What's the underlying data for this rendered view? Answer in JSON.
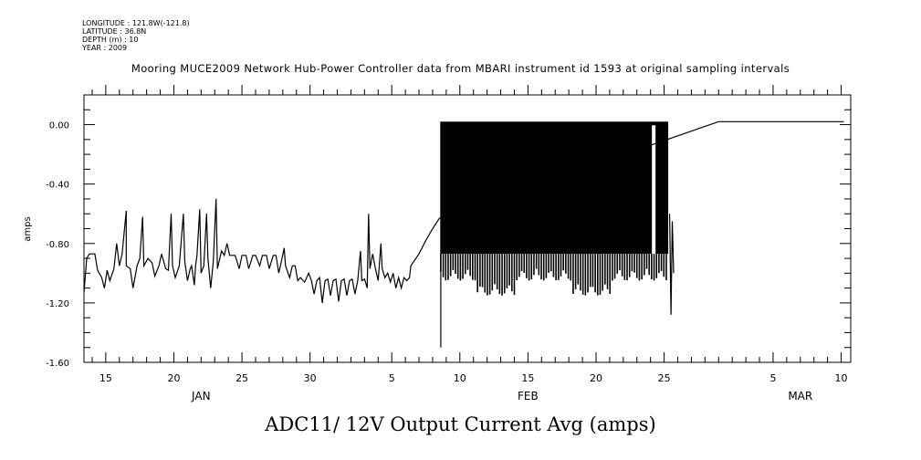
{
  "meta": {
    "longitude": "LONGITUDE : 121.8W(-121.8)",
    "latitude": "LATITUDE : 36.8N",
    "depth": "DEPTH (m) : 10",
    "year": "YEAR : 2009"
  },
  "chart_data": {
    "type": "line",
    "title": "Mooring MUCE2009 Network Hub-Power Controller data from MBARI instrument id 1593 at original sampling intervals",
    "xlabel": "ADC11/ 12V Output Current Avg (amps)",
    "ylabel": "amps",
    "xlim_day": [
      13.4,
      69.7
    ],
    "ylim": [
      -1.6,
      0.2
    ],
    "y_ticks": [
      {
        "v": 0.0,
        "label": "0.00"
      },
      {
        "v": -0.4,
        "label": "-0.40"
      },
      {
        "v": -0.8,
        "label": "-0.80"
      },
      {
        "v": -1.2,
        "label": "-1.20"
      },
      {
        "v": -1.6,
        "label": "-1.60"
      }
    ],
    "x_tick_labels": [
      {
        "day": 15,
        "label": "15"
      },
      {
        "day": 20,
        "label": "20"
      },
      {
        "day": 25,
        "label": "25"
      },
      {
        "day": 30,
        "label": "30"
      },
      {
        "day": 36,
        "label": "5"
      },
      {
        "day": 41,
        "label": "10"
      },
      {
        "day": 46,
        "label": "15"
      },
      {
        "day": 51,
        "label": "20"
      },
      {
        "day": 56,
        "label": "25"
      },
      {
        "day": 64,
        "label": "5"
      },
      {
        "day": 69,
        "label": "10"
      }
    ],
    "months": [
      {
        "day": 22,
        "label": "JAN"
      },
      {
        "day": 46,
        "label": "FEB"
      },
      {
        "day": 66,
        "label": "MAR"
      }
    ],
    "series": [
      {
        "name": "ADC11 12V Output Current Avg",
        "units": "amps",
        "points": [
          [
            13.4,
            -1.13
          ],
          [
            13.6,
            -0.9
          ],
          [
            13.8,
            -0.87
          ],
          [
            14.2,
            -0.87
          ],
          [
            14.4,
            -0.98
          ],
          [
            14.7,
            -1.03
          ],
          [
            14.9,
            -1.1
          ],
          [
            15.1,
            -0.98
          ],
          [
            15.3,
            -1.05
          ],
          [
            15.6,
            -0.97
          ],
          [
            15.8,
            -0.8
          ],
          [
            16.0,
            -0.95
          ],
          [
            16.2,
            -0.87
          ],
          [
            16.5,
            -0.58
          ],
          [
            16.5,
            -0.95
          ],
          [
            16.8,
            -0.97
          ],
          [
            17.0,
            -1.1
          ],
          [
            17.3,
            -0.95
          ],
          [
            17.5,
            -0.9
          ],
          [
            17.7,
            -0.62
          ],
          [
            17.8,
            -0.95
          ],
          [
            18.1,
            -0.9
          ],
          [
            18.4,
            -0.93
          ],
          [
            18.6,
            -1.02
          ],
          [
            18.9,
            -0.95
          ],
          [
            19.1,
            -0.87
          ],
          [
            19.4,
            -0.97
          ],
          [
            19.6,
            -0.98
          ],
          [
            19.8,
            -0.6
          ],
          [
            19.9,
            -0.95
          ],
          [
            20.1,
            -1.03
          ],
          [
            20.4,
            -0.95
          ],
          [
            20.7,
            -0.6
          ],
          [
            20.8,
            -0.92
          ],
          [
            21.0,
            -1.05
          ],
          [
            21.2,
            -0.97
          ],
          [
            21.3,
            -0.95
          ],
          [
            21.5,
            -1.08
          ],
          [
            21.6,
            -0.95
          ],
          [
            21.7,
            -0.88
          ],
          [
            21.9,
            -0.57
          ],
          [
            22.0,
            -1.0
          ],
          [
            22.2,
            -0.95
          ],
          [
            22.4,
            -0.6
          ],
          [
            22.5,
            -0.9
          ],
          [
            22.7,
            -1.1
          ],
          [
            22.9,
            -0.92
          ],
          [
            23.1,
            -0.5
          ],
          [
            23.2,
            -0.97
          ],
          [
            23.5,
            -0.85
          ],
          [
            23.7,
            -0.88
          ],
          [
            23.9,
            -0.8
          ],
          [
            24.1,
            -0.88
          ],
          [
            24.5,
            -0.88
          ],
          [
            24.8,
            -0.97
          ],
          [
            25.0,
            -0.88
          ],
          [
            25.3,
            -0.88
          ],
          [
            25.5,
            -0.97
          ],
          [
            25.8,
            -0.88
          ],
          [
            26.0,
            -0.88
          ],
          [
            26.3,
            -0.95
          ],
          [
            26.5,
            -0.88
          ],
          [
            26.8,
            -0.88
          ],
          [
            27.0,
            -0.97
          ],
          [
            27.3,
            -0.88
          ],
          [
            27.5,
            -0.88
          ],
          [
            27.7,
            -1.0
          ],
          [
            27.9,
            -0.92
          ],
          [
            28.1,
            -0.83
          ],
          [
            28.2,
            -0.95
          ],
          [
            28.5,
            -1.03
          ],
          [
            28.7,
            -0.95
          ],
          [
            28.9,
            -0.95
          ],
          [
            29.1,
            -1.05
          ],
          [
            29.3,
            -1.03
          ],
          [
            29.6,
            -1.06
          ],
          [
            29.9,
            -1.0
          ],
          [
            30.1,
            -1.05
          ],
          [
            30.3,
            -1.14
          ],
          [
            30.5,
            -1.05
          ],
          [
            30.7,
            -1.03
          ],
          [
            30.9,
            -1.2
          ],
          [
            31.1,
            -1.05
          ],
          [
            31.3,
            -1.04
          ],
          [
            31.5,
            -1.15
          ],
          [
            31.7,
            -1.05
          ],
          [
            31.9,
            -1.04
          ],
          [
            32.1,
            -1.19
          ],
          [
            32.3,
            -1.05
          ],
          [
            32.5,
            -1.04
          ],
          [
            32.7,
            -1.15
          ],
          [
            32.9,
            -1.05
          ],
          [
            33.1,
            -1.04
          ],
          [
            33.3,
            -1.14
          ],
          [
            33.5,
            -1.05
          ],
          [
            33.7,
            -0.85
          ],
          [
            33.8,
            -1.05
          ],
          [
            34.0,
            -1.04
          ],
          [
            34.2,
            -1.1
          ],
          [
            34.3,
            -0.6
          ],
          [
            34.4,
            -0.97
          ],
          [
            34.6,
            -0.87
          ],
          [
            34.8,
            -0.97
          ],
          [
            35.0,
            -1.05
          ],
          [
            35.2,
            -0.8
          ],
          [
            35.3,
            -0.97
          ],
          [
            35.5,
            -1.03
          ],
          [
            35.7,
            -1.0
          ],
          [
            35.9,
            -1.06
          ],
          [
            36.1,
            -1.0
          ],
          [
            36.3,
            -1.1
          ],
          [
            36.5,
            -1.03
          ],
          [
            36.7,
            -1.1
          ],
          [
            36.9,
            -1.03
          ],
          [
            37.1,
            -1.05
          ],
          [
            37.3,
            -1.03
          ],
          [
            37.4,
            -0.95
          ],
          [
            38.0,
            -0.87
          ],
          [
            38.5,
            -0.78
          ],
          [
            39.0,
            -0.7
          ],
          [
            39.5,
            -0.63
          ],
          [
            60.0,
            0.02
          ],
          [
            69.2,
            0.02
          ]
        ]
      }
    ],
    "feb_band": {
      "start_day": 39.6,
      "end_day": 56.3,
      "top": 0.02,
      "baseline": -0.87,
      "min": -1.5
    },
    "late_points": [
      [
        56.4,
        -0.6
      ],
      [
        56.5,
        -1.28
      ],
      [
        56.6,
        -0.65
      ],
      [
        56.7,
        -1.0
      ]
    ]
  }
}
